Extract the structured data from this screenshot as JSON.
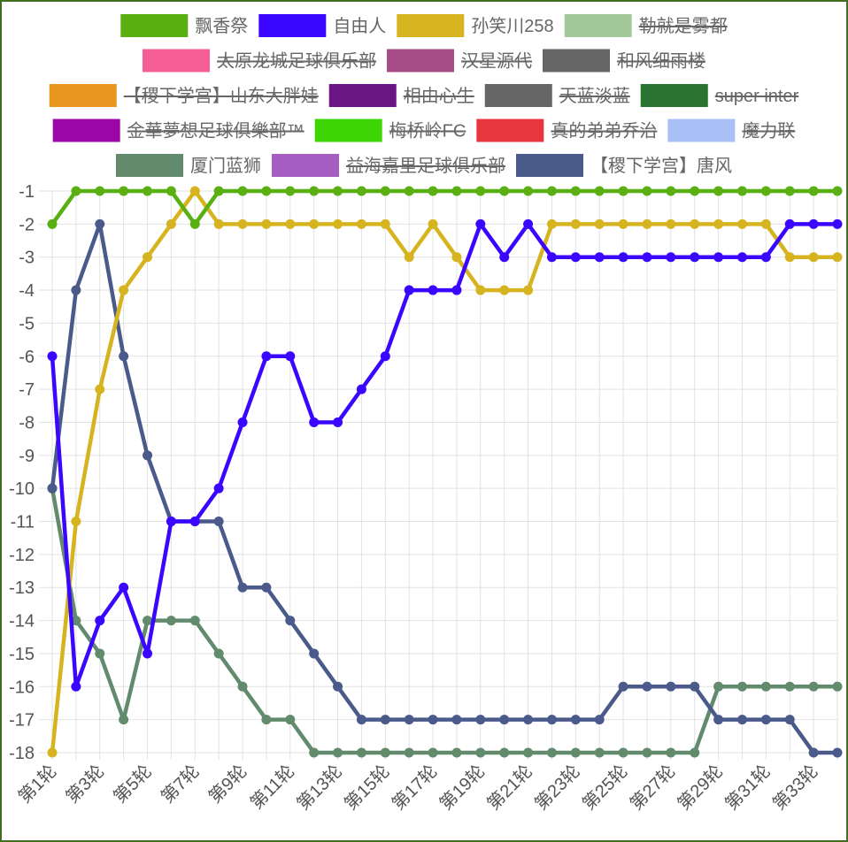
{
  "chart_data": {
    "type": "line",
    "title": "",
    "xlabel": "",
    "ylabel": "",
    "ylim": [
      -18,
      -1
    ],
    "y_ticks": [
      -1,
      -2,
      -3,
      -4,
      -5,
      -6,
      -7,
      -8,
      -9,
      -10,
      -11,
      -12,
      -13,
      -14,
      -15,
      -16,
      -17,
      -18
    ],
    "categories": [
      "第1轮",
      "第2轮",
      "第3轮",
      "第4轮",
      "第5轮",
      "第6轮",
      "第7轮",
      "第8轮",
      "第9轮",
      "第10轮",
      "第11轮",
      "第12轮",
      "第13轮",
      "第14轮",
      "第15轮",
      "第16轮",
      "第17轮",
      "第18轮",
      "第19轮",
      "第20轮",
      "第21轮",
      "第22轮",
      "第23轮",
      "第24轮",
      "第25轮",
      "第26轮",
      "第27轮",
      "第28轮",
      "第29轮",
      "第30轮",
      "第31轮",
      "第32轮",
      "第33轮",
      "第34轮"
    ],
    "x_tick_labels": [
      "第1轮",
      "第3轮",
      "第5轮",
      "第7轮",
      "第9轮",
      "第11轮",
      "第13轮",
      "第15轮",
      "第17轮",
      "第19轮",
      "第21轮",
      "第23轮",
      "第25轮",
      "第27轮",
      "第29轮",
      "第31轮",
      "第33轮"
    ],
    "grid": true,
    "legend_position": "top",
    "legend": [
      {
        "name": "飘香祭",
        "color": "#5aaf12",
        "hidden": false
      },
      {
        "name": "自由人",
        "color": "#3a06ff",
        "hidden": false
      },
      {
        "name": "孙笑川258",
        "color": "#d6b420",
        "hidden": false
      },
      {
        "name": "勒就是雾都",
        "color": "#a3c89a",
        "hidden": true
      },
      {
        "name": "太原龙城足球俱乐部",
        "color": "#f65f95",
        "hidden": true
      },
      {
        "name": "汉星源代",
        "color": "#a74c86",
        "hidden": true
      },
      {
        "name": "和风细雨楼",
        "color": "#666666",
        "hidden": true
      },
      {
        "name": "【稷下学宫】山东大胖娃",
        "color": "#e8961e",
        "hidden": true
      },
      {
        "name": "相由心生",
        "color": "#6a1583",
        "hidden": true
      },
      {
        "name": "天蓝淡蓝",
        "color": "#666666",
        "hidden": true
      },
      {
        "name": "super inter",
        "color": "#2a7330",
        "hidden": true
      },
      {
        "name": "金華夢想足球俱樂部™",
        "color": "#9b06a8",
        "hidden": true
      },
      {
        "name": "梅桥岭FC",
        "color": "#3fd606",
        "hidden": true
      },
      {
        "name": "真的弟弟乔治",
        "color": "#e8363f",
        "hidden": true
      },
      {
        "name": "魔力联",
        "color": "#a9c0f7",
        "hidden": true
      },
      {
        "name": "厦门蓝狮",
        "color": "#628a6d",
        "hidden": false
      },
      {
        "name": "益海嘉里足球俱乐部",
        "color": "#a75ec2",
        "hidden": true
      },
      {
        "name": "【稷下学宫】唐风",
        "color": "#4a5a8a",
        "hidden": false
      }
    ],
    "series": [
      {
        "name": "厦门蓝狮",
        "color": "#628a6d",
        "values": [
          -10,
          -14,
          -15,
          -17,
          -14,
          -14,
          -14,
          -15,
          -16,
          -17,
          -17,
          -18,
          -18,
          -18,
          -18,
          -18,
          -18,
          -18,
          -18,
          -18,
          -18,
          -18,
          -18,
          -18,
          -18,
          -18,
          -18,
          -18,
          -16,
          -16,
          -16,
          -16,
          -16,
          -16
        ]
      },
      {
        "name": "【稷下学宫】唐风",
        "color": "#4a5a8a",
        "values": [
          -10,
          -4,
          -2,
          -6,
          -9,
          -11,
          -11,
          -11,
          -13,
          -13,
          -14,
          -15,
          -16,
          -17,
          -17,
          -17,
          -17,
          -17,
          -17,
          -17,
          -17,
          -17,
          -17,
          -17,
          -16,
          -16,
          -16,
          -16,
          -17,
          -17,
          -17,
          -17,
          -18,
          -18
        ]
      },
      {
        "name": "孙笑川258",
        "color": "#d6b420",
        "values": [
          -18,
          -11,
          -7,
          -4,
          -3,
          -2,
          -1,
          -2,
          -2,
          -2,
          -2,
          -2,
          -2,
          -2,
          -2,
          -3,
          -2,
          -3,
          -4,
          -4,
          -4,
          -2,
          -2,
          -2,
          -2,
          -2,
          -2,
          -2,
          -2,
          -2,
          -2,
          -3,
          -3,
          -3
        ]
      },
      {
        "name": "自由人",
        "color": "#3a06ff",
        "values": [
          -6,
          -16,
          -14,
          -13,
          -15,
          -11,
          -11,
          -10,
          -8,
          -6,
          -6,
          -8,
          -8,
          -7,
          -6,
          -4,
          -4,
          -4,
          -2,
          -3,
          -2,
          -3,
          -3,
          -3,
          -3,
          -3,
          -3,
          -3,
          -3,
          -3,
          -3,
          -2,
          -2,
          -2
        ]
      },
      {
        "name": "飘香祭",
        "color": "#5aaf12",
        "values": [
          -2,
          -1,
          -1,
          -1,
          -1,
          -1,
          -2,
          -1,
          -1,
          -1,
          -1,
          -1,
          -1,
          -1,
          -1,
          -1,
          -1,
          -1,
          -1,
          -1,
          -1,
          -1,
          -1,
          -1,
          -1,
          -1,
          -1,
          -1,
          -1,
          -1,
          -1,
          -1,
          -1,
          -1
        ]
      }
    ]
  }
}
